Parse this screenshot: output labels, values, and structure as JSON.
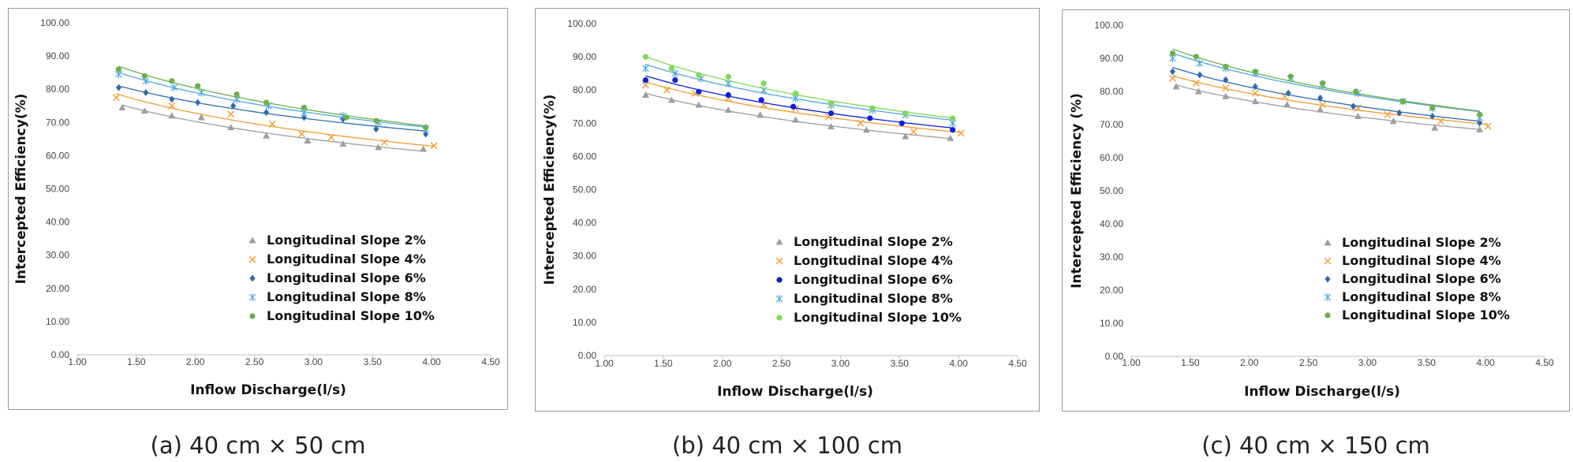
{
  "captions": [
    "(a) 40 cm × 50 cm",
    "(b) 40 cm × 100 cm",
    "(c) 40 cm × 150 cm"
  ],
  "colors": {
    "slope2": "#9e9e9e",
    "slope4": "#f39c32",
    "slope6": "#2e6ab0",
    "slope8": "#4fa7dc",
    "slope10": "#6ab04c",
    "slope6_b": "#0a1ee0",
    "slope10_b": "#7ed957",
    "axis": "#bfbfbf",
    "frame": "#9a9a9a"
  },
  "chart_data": [
    {
      "type": "scatter",
      "xlabel": "Inflow Discharge(l/s)",
      "ylabel": "Intercepted Efficiency(%)",
      "xlim": [
        1.0,
        4.5
      ],
      "ylim": [
        0,
        100
      ],
      "xticks": [
        "1.00",
        "1.50",
        "2.00",
        "2.50",
        "3.00",
        "3.50",
        "4.00",
        "4.50"
      ],
      "yticks": [
        "0.00",
        "10.00",
        "20.00",
        "30.00",
        "40.00",
        "50.00",
        "60.00",
        "70.00",
        "80.00",
        "90.00",
        "100.00"
      ],
      "legend_position": "bottom-right",
      "trendlines": true,
      "series": [
        {
          "name": "Longitudinal Slope 2%",
          "marker": "triangle",
          "color": "#9e9e9e",
          "x": [
            1.38,
            1.57,
            1.8,
            2.05,
            2.3,
            2.6,
            2.95,
            3.25,
            3.55,
            3.93
          ],
          "y": [
            74.5,
            73.5,
            72.0,
            71.5,
            68.5,
            66.0,
            64.5,
            63.5,
            62.5,
            62.0
          ]
        },
        {
          "name": "Longitudinal Slope 4%",
          "marker": "x",
          "color": "#f39c32",
          "x": [
            1.33,
            1.8,
            2.3,
            2.65,
            2.9,
            3.15,
            3.6,
            4.02
          ],
          "y": [
            77.5,
            75.0,
            72.5,
            69.5,
            66.5,
            65.5,
            64.0,
            63.0
          ]
        },
        {
          "name": "Longitudinal Slope 6%",
          "marker": "diamond",
          "color": "#2e6ab0",
          "x": [
            1.35,
            1.58,
            1.8,
            2.02,
            2.32,
            2.6,
            2.92,
            3.25,
            3.53,
            3.95
          ],
          "y": [
            80.5,
            79.0,
            77.0,
            76.0,
            75.0,
            73.0,
            71.5,
            71.0,
            68.0,
            66.5
          ]
        },
        {
          "name": "Longitudinal Slope 8%",
          "marker": "star",
          "color": "#4fa7dc",
          "x": [
            1.35,
            1.58,
            1.82,
            2.05,
            2.35,
            2.62,
            2.92,
            3.25,
            3.55,
            3.95
          ],
          "y": [
            84.5,
            82.5,
            80.5,
            79.0,
            77.0,
            75.0,
            73.0,
            72.0,
            70.0,
            68.0
          ]
        },
        {
          "name": "Longitudinal Slope 10%",
          "marker": "circle",
          "color": "#6ab04c",
          "x": [
            1.35,
            1.57,
            1.8,
            2.02,
            2.35,
            2.6,
            2.92,
            3.28,
            3.53,
            3.95
          ],
          "y": [
            86.0,
            84.0,
            82.5,
            81.0,
            78.5,
            76.0,
            74.5,
            71.5,
            70.5,
            68.5
          ]
        }
      ]
    },
    {
      "type": "scatter",
      "xlabel": "Inflow Discharge(l/s)",
      "ylabel": "Intercepted Efficiency(%)",
      "xlim": [
        1.0,
        4.5
      ],
      "ylim": [
        0,
        100
      ],
      "xticks": [
        "1.00",
        "1.50",
        "2.00",
        "2.50",
        "3.00",
        "3.50",
        "4.00",
        "4.50"
      ],
      "yticks": [
        "0.00",
        "10.00",
        "20.00",
        "30.00",
        "40.00",
        "50.00",
        "60.00",
        "70.00",
        "80.00",
        "90.00",
        "100.00"
      ],
      "legend_position": "bottom-right",
      "trendlines": true,
      "series": [
        {
          "name": "Longitudinal Slope 2%",
          "marker": "triangle",
          "color": "#9e9e9e",
          "x": [
            1.35,
            1.57,
            1.8,
            2.05,
            2.32,
            2.62,
            2.92,
            3.22,
            3.55,
            3.93
          ],
          "y": [
            78.5,
            77.0,
            75.5,
            74.0,
            72.5,
            71.0,
            69.0,
            68.0,
            66.0,
            65.5
          ]
        },
        {
          "name": "Longitudinal Slope 4%",
          "marker": "x",
          "color": "#f39c32",
          "x": [
            1.35,
            1.53,
            1.77,
            2.05,
            2.35,
            2.62,
            2.9,
            3.17,
            3.62,
            4.02
          ],
          "y": [
            81.5,
            80.0,
            79.0,
            77.5,
            75.5,
            74.5,
            72.0,
            70.0,
            67.5,
            67.0
          ]
        },
        {
          "name": "Longitudinal Slope 6%",
          "marker": "circle",
          "color": "#0a1ee0",
          "x": [
            1.35,
            1.6,
            1.8,
            2.05,
            2.33,
            2.6,
            2.92,
            3.25,
            3.52,
            3.95
          ],
          "y": [
            83.0,
            83.0,
            79.5,
            78.5,
            77.0,
            75.0,
            73.0,
            71.5,
            70.0,
            68.0
          ]
        },
        {
          "name": "Longitudinal Slope 8%",
          "marker": "star",
          "color": "#4fa7dc",
          "x": [
            1.35,
            1.6,
            1.82,
            2.05,
            2.35,
            2.62,
            2.92,
            3.27,
            3.55,
            3.95
          ],
          "y": [
            86.5,
            85.0,
            83.5,
            82.0,
            80.0,
            77.5,
            75.5,
            74.0,
            72.5,
            70.0
          ]
        },
        {
          "name": "Longitudinal Slope 10%",
          "marker": "circle",
          "color": "#7ed957",
          "x": [
            1.35,
            1.57,
            1.8,
            2.05,
            2.35,
            2.62,
            2.92,
            3.27,
            3.55,
            3.95
          ],
          "y": [
            90.0,
            86.5,
            84.5,
            84.0,
            82.0,
            79.0,
            76.0,
            74.5,
            73.0,
            71.5
          ]
        }
      ]
    },
    {
      "type": "scatter",
      "xlabel": "Inflow Discharge(l/s)",
      "ylabel": "Intercepted Efficiency (%)",
      "xlim": [
        1.0,
        4.5
      ],
      "ylim": [
        0,
        100
      ],
      "xticks": [
        "1.00",
        "1.50",
        "2.00",
        "2.50",
        "3.00",
        "3.50",
        "4.00",
        "4.50"
      ],
      "yticks": [
        "0.00",
        "10.00",
        "20.00",
        "30.00",
        "40.00",
        "50.00",
        "60.00",
        "70.00",
        "80.00",
        "90.00",
        "100.00"
      ],
      "legend_position": "bottom-right",
      "trendlines": true,
      "series": [
        {
          "name": "Longitudinal Slope 2%",
          "marker": "triangle",
          "color": "#9e9e9e",
          "x": [
            1.38,
            1.57,
            1.8,
            2.05,
            2.32,
            2.6,
            2.92,
            3.22,
            3.57,
            3.95
          ],
          "y": [
            81.5,
            80.0,
            78.5,
            77.0,
            76.0,
            74.5,
            72.5,
            71.0,
            69.0,
            68.5
          ]
        },
        {
          "name": "Longitudinal Slope 4%",
          "marker": "x",
          "color": "#f39c32",
          "x": [
            1.35,
            1.55,
            1.8,
            2.05,
            2.3,
            2.62,
            2.92,
            3.17,
            3.62,
            4.02
          ],
          "y": [
            84.0,
            82.5,
            81.0,
            79.5,
            78.5,
            76.0,
            75.0,
            73.0,
            71.0,
            69.5
          ]
        },
        {
          "name": "Longitudinal Slope 6%",
          "marker": "diamond",
          "color": "#2e6ab0",
          "x": [
            1.35,
            1.58,
            1.8,
            2.05,
            2.33,
            2.6,
            2.88,
            3.27,
            3.55,
            3.95
          ],
          "y": [
            86.0,
            85.0,
            83.5,
            81.5,
            79.5,
            78.0,
            75.5,
            73.5,
            72.5,
            70.5
          ]
        },
        {
          "name": "Longitudinal Slope 8%",
          "marker": "star",
          "color": "#4fa7dc",
          "x": [
            1.35,
            1.58,
            1.8,
            2.05,
            2.35,
            2.62,
            2.92,
            3.3,
            3.55,
            3.95
          ],
          "y": [
            90.0,
            88.5,
            87.0,
            85.5,
            84.0,
            82.0,
            79.5,
            77.0,
            75.0,
            72.0
          ]
        },
        {
          "name": "Longitudinal Slope 10%",
          "marker": "circle",
          "color": "#6ab04c",
          "x": [
            1.35,
            1.55,
            1.8,
            2.05,
            2.35,
            2.62,
            2.9,
            3.3,
            3.55,
            3.95
          ],
          "y": [
            91.5,
            90.5,
            87.5,
            86.0,
            84.5,
            82.5,
            80.0,
            77.0,
            75.0,
            73.0
          ]
        }
      ]
    }
  ]
}
